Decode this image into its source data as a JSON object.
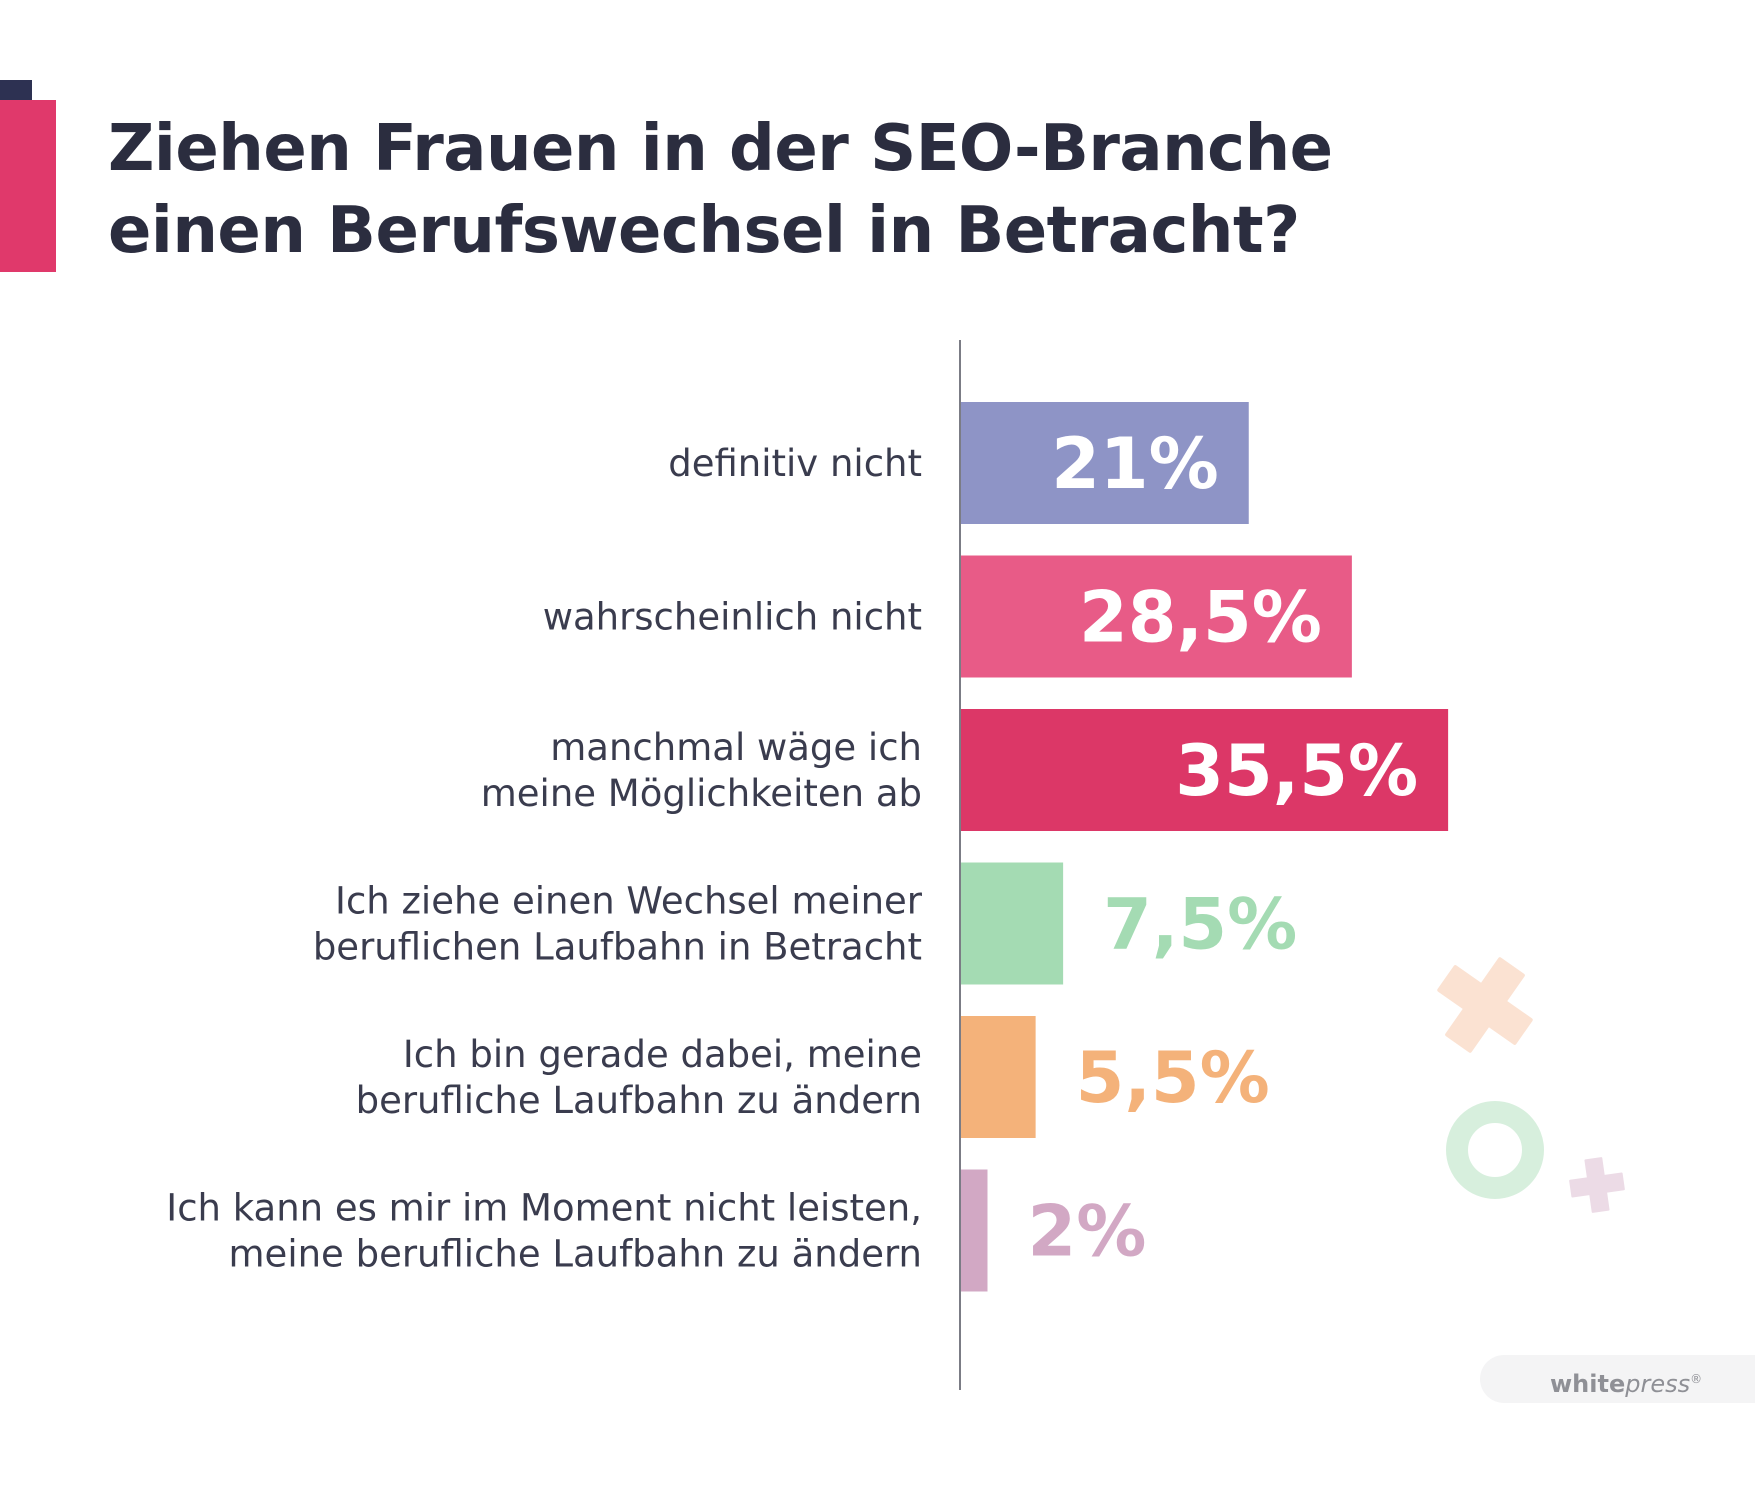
{
  "title": {
    "line1": "Ziehen Frauen in der SEO-Branche",
    "line2": "einen Berufswechsel in Betracht?"
  },
  "chart_data": {
    "type": "bar",
    "orientation": "horizontal",
    "title": "Ziehen Frauen in der SEO-Branche einen Berufswechsel in Betracht?",
    "xlabel": "",
    "ylabel": "",
    "unit": "%",
    "categories": [
      [
        "definitiv nicht"
      ],
      [
        "wahrscheinlich nicht"
      ],
      [
        "manchmal wäge ich",
        "meine Möglichkeiten ab"
      ],
      [
        "Ich ziehe einen Wechsel meiner",
        "beruflichen Laufbahn in Betracht"
      ],
      [
        "Ich bin gerade dabei, meine",
        "berufliche Laufbahn zu ändern"
      ],
      [
        "Ich kann es mir im Moment nicht leisten,",
        "meine berufliche Laufbahn zu ändern"
      ]
    ],
    "values": [
      21,
      28.5,
      35.5,
      7.5,
      5.5,
      2
    ],
    "value_labels": [
      "21%",
      "28,5%",
      "35,5%",
      "7,5%",
      "5,5%",
      "2%"
    ],
    "colors": [
      "#8e94c6",
      "#e85b87",
      "#dc3767",
      "#a4dbb3",
      "#f4b27a",
      "#d2a8c4"
    ],
    "label_colors": [
      "#ffffff",
      "#ffffff",
      "#ffffff",
      "#a4dbb3",
      "#f4b27a",
      "#d2a8c4"
    ],
    "xlim": [
      0,
      38
    ],
    "grid": false,
    "legend": "none"
  },
  "decorations": {
    "colors": {
      "cross_large": "#fbe2d2",
      "ring": "#d7efdd",
      "cross_small": "#ecdbe6"
    },
    "icons": [
      "plus-icon",
      "ring-icon",
      "plus-icon"
    ]
  },
  "logo": {
    "part1": "white",
    "part2": "press",
    "mark": "®"
  }
}
